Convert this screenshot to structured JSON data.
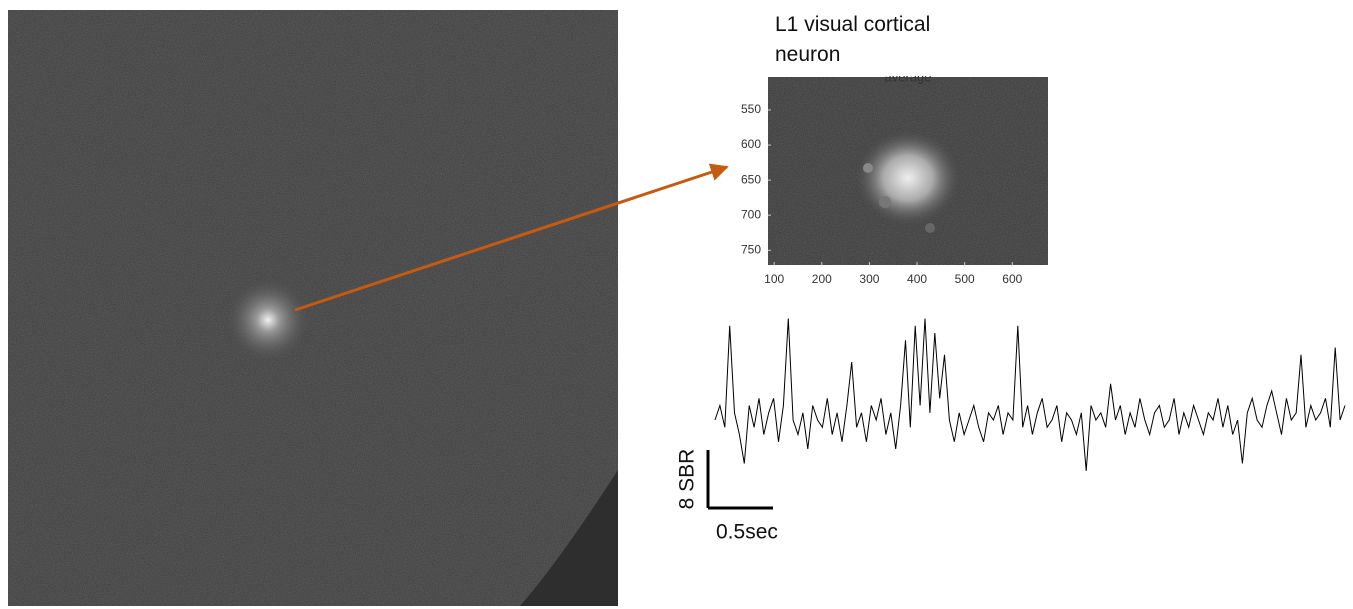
{
  "title": "L1 visual cortical neuron",
  "inset": {
    "title": "average",
    "xlim": [
      87,
      675
    ],
    "ylim": [
      503,
      771
    ],
    "xticks": [
      100,
      200,
      300,
      400,
      500,
      600
    ],
    "yticks": [
      550,
      600,
      650,
      700,
      750
    ]
  },
  "trace": {
    "type": "line",
    "color": "#000000",
    "values": [
      0,
      2,
      -1,
      13,
      1,
      -2,
      -6,
      2,
      -1,
      3,
      -2,
      1,
      3,
      -3,
      2,
      14,
      0,
      -2,
      1,
      -4,
      2,
      0,
      -1,
      3,
      -2,
      1,
      -3,
      2,
      8,
      -1,
      1,
      -3,
      2,
      0,
      3,
      -2,
      1,
      -4,
      2,
      11,
      -1,
      13,
      2,
      14,
      1,
      12,
      3,
      9,
      0,
      -3,
      1,
      -2,
      0,
      2,
      -1,
      -3,
      1,
      0,
      2,
      -2,
      1,
      0,
      13,
      -1,
      2,
      -2,
      1,
      3,
      -1,
      0,
      2,
      -3,
      1,
      0,
      -2,
      1,
      -7,
      2,
      0,
      1,
      -1,
      5,
      0,
      2,
      -2,
      1,
      -1,
      3,
      0,
      -2,
      1,
      2,
      -1,
      0,
      3,
      -2,
      1,
      -1,
      2,
      0,
      -2,
      1,
      0,
      3,
      -1,
      2,
      -2,
      0,
      -6,
      1,
      3,
      0,
      -1,
      2,
      4,
      1,
      -2,
      3,
      0,
      1,
      9,
      -1,
      2,
      0,
      1,
      3,
      -1,
      10,
      0,
      2
    ],
    "scale_bar": {
      "y_value": 8,
      "y_label": "8 SBR",
      "x_value": 0.5,
      "x_label": "0.5sec"
    }
  }
}
